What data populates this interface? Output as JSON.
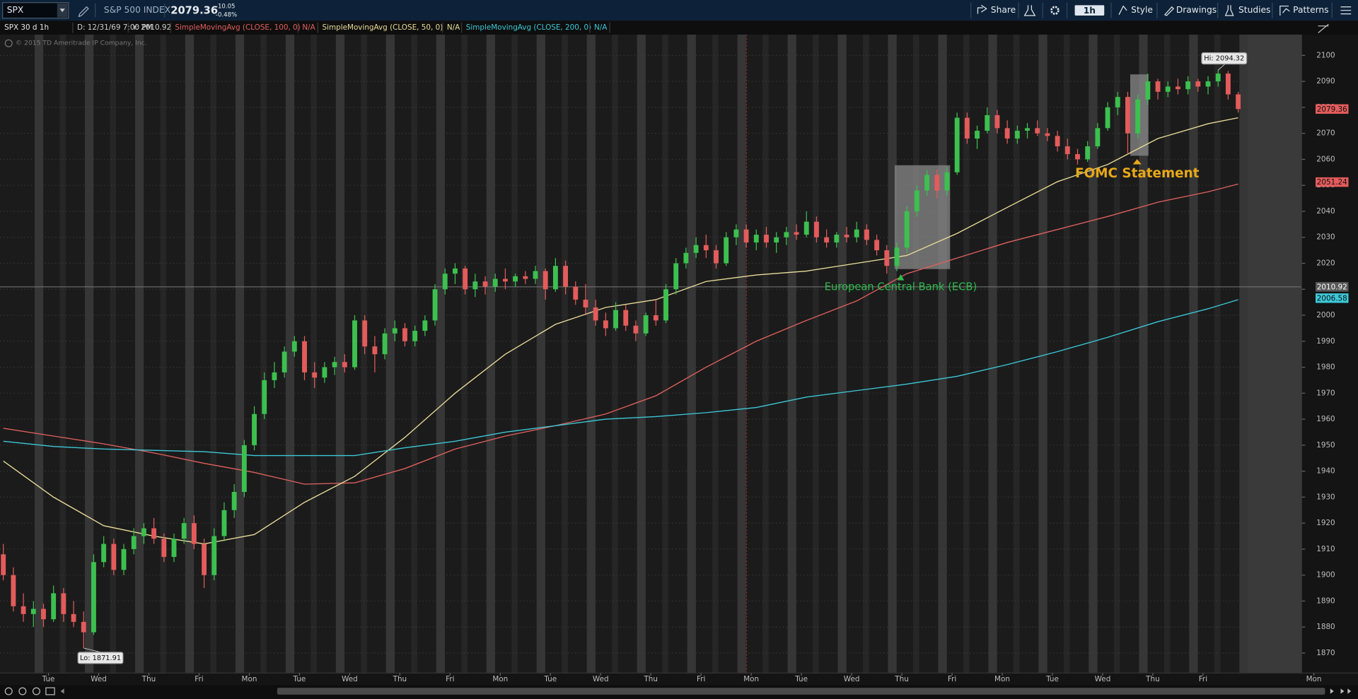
{
  "toolbar": {
    "symbol": "SPX",
    "description": "S&P 500 INDEX",
    "change": "-10.05",
    "change_pct": "-0.48%",
    "buttons": [
      "Share",
      "1h",
      "Style",
      "Drawings",
      "Studies",
      "Patterns"
    ]
  },
  "status": {
    "chart": "SPX 30 d 1h",
    "date": "D: 12/31/69 7:00 PM",
    "y": "Y: 2010.92"
  },
  "copyright": "© 2015 TD Ameritrade IP Company, Inc.",
  "chart_data": {
    "type": "candlestick",
    "up_color": "#3cc04f",
    "down_color": "#e35b5b",
    "grid": true,
    "ylim": [
      1862.3,
      2108
    ],
    "yticks": [
      1870,
      1880,
      1890,
      1900,
      1910,
      1920,
      1930,
      1940,
      1950,
      1960,
      1970,
      1980,
      1990,
      2000,
      2010,
      2020,
      2030,
      2040,
      2050,
      2060,
      2070,
      2080,
      2090,
      2100
    ],
    "x_labels": [
      "Tue",
      "Wed",
      "Thu",
      "Fri",
      "Mon",
      "Tue",
      "Wed",
      "Thu",
      "Fri",
      "Mon",
      "Tue",
      "Wed",
      "Thu",
      "Fri",
      "Mon",
      "Tue",
      "Wed",
      "Thu",
      "Fri",
      "Mon",
      "Tue",
      "Wed",
      "Thu",
      "Fri",
      "Mon"
    ],
    "candles": [
      [
        1908,
        1912,
        1898,
        1900
      ],
      [
        1900,
        1903,
        1886,
        1888
      ],
      [
        1888,
        1893,
        1882,
        1885
      ],
      [
        1885,
        1890,
        1880,
        1887
      ],
      [
        1887,
        1889,
        1880,
        1883
      ],
      [
        1883,
        1896,
        1882,
        1893
      ],
      [
        1893,
        1895,
        1882,
        1885
      ],
      [
        1885,
        1890,
        1880,
        1882
      ],
      [
        1882,
        1886,
        1871.91,
        1878
      ],
      [
        1878,
        1908,
        1877,
        1905
      ],
      [
        1905,
        1915,
        1903,
        1912
      ],
      [
        1912,
        1914,
        1900,
        1902
      ],
      [
        1902,
        1912,
        1900,
        1910
      ],
      [
        1910,
        1918,
        1908,
        1915
      ],
      [
        1915,
        1920,
        1912,
        1918
      ],
      [
        1918,
        1922,
        1912,
        1914
      ],
      [
        1914,
        1916,
        1905,
        1907
      ],
      [
        1907,
        1916,
        1905,
        1914
      ],
      [
        1914,
        1922,
        1912,
        1920
      ],
      [
        1920,
        1923,
        1910,
        1912
      ],
      [
        1912,
        1914,
        1895,
        1900
      ],
      [
        1900,
        1918,
        1898,
        1915
      ],
      [
        1915,
        1928,
        1913,
        1925
      ],
      [
        1925,
        1935,
        1922,
        1932
      ],
      [
        1932,
        1952,
        1930,
        1950
      ],
      [
        1950,
        1965,
        1948,
        1962
      ],
      [
        1962,
        1978,
        1960,
        1975
      ],
      [
        1975,
        1982,
        1972,
        1978
      ],
      [
        1978,
        1988,
        1976,
        1986
      ],
      [
        1986,
        1992,
        1984,
        1990
      ],
      [
        1990,
        1992,
        1975,
        1978
      ],
      [
        1978,
        1982,
        1972,
        1976
      ],
      [
        1976,
        1982,
        1974,
        1980
      ],
      [
        1980,
        1984,
        1977,
        1982
      ],
      [
        1982,
        1985,
        1978,
        1980
      ],
      [
        1980,
        2000,
        1979,
        1998
      ],
      [
        1998,
        2000,
        1985,
        1988
      ],
      [
        1988,
        1992,
        1978,
        1985
      ],
      [
        1985,
        1995,
        1983,
        1993
      ],
      [
        1993,
        1998,
        1990,
        1995
      ],
      [
        1995,
        1997,
        1988,
        1990
      ],
      [
        1990,
        1996,
        1988,
        1994
      ],
      [
        1994,
        2000,
        1992,
        1998
      ],
      [
        1998,
        2012,
        1996,
        2010
      ],
      [
        2010,
        2018,
        2008,
        2016
      ],
      [
        2016,
        2020,
        2012,
        2018
      ],
      [
        2018,
        2019,
        2008,
        2010
      ],
      [
        2010,
        2016,
        2007,
        2013
      ],
      [
        2013,
        2015,
        2008,
        2011
      ],
      [
        2011,
        2016,
        2009,
        2014
      ],
      [
        2014,
        2018,
        2010,
        2013
      ],
      [
        2013,
        2016,
        2011,
        2015
      ],
      [
        2015,
        2017,
        2012,
        2014
      ],
      [
        2014,
        2019,
        2012,
        2017
      ],
      [
        2017,
        2018,
        2006,
        2010
      ],
      [
        2010,
        2022,
        2009,
        2019
      ],
      [
        2019,
        2021,
        2008,
        2011
      ],
      [
        2011,
        2013,
        2004,
        2006
      ],
      [
        2006,
        2012,
        2000,
        2003
      ],
      [
        2003,
        2006,
        1996,
        1998
      ],
      [
        1998,
        2001,
        1992,
        1995
      ],
      [
        1995,
        2005,
        1994,
        2002
      ],
      [
        2002,
        2004,
        1994,
        1996
      ],
      [
        1996,
        1998,
        1990,
        1993
      ],
      [
        1993,
        2001,
        1992,
        2000
      ],
      [
        2000,
        2006,
        1996,
        1998
      ],
      [
        1998,
        2012,
        1997,
        2010
      ],
      [
        2010,
        2022,
        2008,
        2020
      ],
      [
        2020,
        2026,
        2018,
        2024
      ],
      [
        2024,
        2030,
        2022,
        2027
      ],
      [
        2027,
        2031,
        2022,
        2025
      ],
      [
        2025,
        2027,
        2018,
        2020
      ],
      [
        2020,
        2032,
        2019,
        2030
      ],
      [
        2030,
        2035,
        2027,
        2033
      ],
      [
        2033,
        2035,
        2026,
        2028
      ],
      [
        2028,
        2033,
        2025,
        2031
      ],
      [
        2031,
        2034,
        2026,
        2028
      ],
      [
        2028,
        2032,
        2024,
        2030
      ],
      [
        2030,
        2034,
        2027,
        2032
      ],
      [
        2032,
        2035,
        2029,
        2031
      ],
      [
        2031,
        2040,
        2030,
        2036
      ],
      [
        2036,
        2038,
        2028,
        2030
      ],
      [
        2030,
        2033,
        2026,
        2028
      ],
      [
        2028,
        2032,
        2026,
        2031
      ],
      [
        2031,
        2034,
        2028,
        2030
      ],
      [
        2030,
        2036,
        2028,
        2033
      ],
      [
        2033,
        2035,
        2027,
        2029
      ],
      [
        2029,
        2031,
        2023,
        2025
      ],
      [
        2025,
        2027,
        2016,
        2019
      ],
      [
        2019,
        2028,
        2017,
        2026
      ],
      [
        2026,
        2042,
        2024,
        2040
      ],
      [
        2040,
        2050,
        2038,
        2048
      ],
      [
        2048,
        2056,
        2046,
        2054
      ],
      [
        2054,
        2056,
        2045,
        2048
      ],
      [
        2048,
        2057,
        2046,
        2055
      ],
      [
        2055,
        2078,
        2054,
        2076
      ],
      [
        2076,
        2078,
        2066,
        2068
      ],
      [
        2068,
        2073,
        2064,
        2071
      ],
      [
        2071,
        2080,
        2070,
        2077
      ],
      [
        2077,
        2079,
        2070,
        2072
      ],
      [
        2072,
        2075,
        2066,
        2068
      ],
      [
        2068,
        2073,
        2066,
        2071
      ],
      [
        2071,
        2074,
        2068,
        2072
      ],
      [
        2072,
        2075,
        2069,
        2070
      ],
      [
        2070,
        2072,
        2067,
        2069
      ],
      [
        2069,
        2071,
        2063,
        2065
      ],
      [
        2065,
        2068,
        2060,
        2062
      ],
      [
        2062,
        2064,
        2058,
        2060
      ],
      [
        2060,
        2067,
        2059,
        2065
      ],
      [
        2065,
        2074,
        2064,
        2072
      ],
      [
        2072,
        2082,
        2071,
        2080
      ],
      [
        2080,
        2086,
        2077,
        2084
      ],
      [
        2084,
        2086,
        2062,
        2070
      ],
      [
        2070,
        2085,
        2068,
        2083
      ],
      [
        2083,
        2093,
        2081,
        2090
      ],
      [
        2090,
        2091,
        2083,
        2086
      ],
      [
        2086,
        2090,
        2084,
        2088
      ],
      [
        2088,
        2091,
        2085,
        2087
      ],
      [
        2087,
        2092,
        2085,
        2090
      ],
      [
        2090,
        2091,
        2086,
        2088
      ],
      [
        2088,
        2092,
        2085,
        2090
      ],
      [
        2090,
        2094.32,
        2088,
        2093
      ],
      [
        2093,
        2094,
        2083,
        2085
      ],
      [
        2085,
        2086,
        2078,
        2079.36
      ]
    ],
    "series": [
      {
        "name": "SimpleMovingAvg (CLOSE, 100, 0)",
        "value_label": "N/A",
        "color": "#e0605e",
        "x": [
          0,
          5,
          10,
          15,
          20,
          25,
          30,
          35,
          40,
          45,
          50,
          55,
          60,
          65,
          70,
          75,
          80,
          85,
          90,
          95,
          100,
          105,
          110,
          115,
          120,
          123
        ],
        "values": [
          1956.5,
          1953.5,
          1950.5,
          1947,
          1943,
          1939.5,
          1935,
          1935.5,
          1941,
          1948.5,
          1953.5,
          1957.5,
          1962,
          1969,
          1980,
          1990,
          1998,
          2005.5,
          2016,
          2022,
          2028,
          2033,
          2038,
          2043.5,
          2047.5,
          2050.5
        ]
      },
      {
        "name": "SimpleMovingAvg (CLOSE, 50, 0)",
        "value_label": "N/A",
        "color": "#e8dc9a",
        "x": [
          0,
          5,
          10,
          15,
          20,
          25,
          30,
          35,
          40,
          45,
          50,
          55,
          60,
          65,
          70,
          75,
          80,
          85,
          90,
          95,
          100,
          105,
          110,
          115,
          120,
          123
        ],
        "values": [
          1943.9,
          1930,
          1919,
          1915,
          1912,
          1915.6,
          1928,
          1938,
          1953,
          1970,
          1985,
          1996.5,
          2003,
          2006,
          2013,
          2015.5,
          2017,
          2020,
          2023,
          2031.5,
          2041.5,
          2051.4,
          2058,
          2068,
          2073.7,
          2076
        ]
      },
      {
        "name": "SimpleMovingAvg (CLOSE, 200, 0)",
        "value_label": "N/A",
        "color": "#3cc8d8",
        "x": [
          0,
          5,
          10,
          15,
          20,
          25,
          30,
          35,
          40,
          45,
          50,
          55,
          60,
          65,
          70,
          75,
          80,
          85,
          90,
          95,
          100,
          105,
          110,
          115,
          120,
          123
        ],
        "values": [
          1951.5,
          1949.5,
          1948.5,
          1948,
          1947.5,
          1946,
          1946,
          1946,
          1949,
          1951.5,
          1955,
          1957.5,
          1960,
          1961,
          1962.5,
          1964.5,
          1968.5,
          1971,
          1973.5,
          1976.5,
          1981,
          1986,
          1991.5,
          1997.5,
          2002.5,
          2006
        ]
      }
    ],
    "price_tags": [
      {
        "value": 2079.36,
        "color": "#e35b5b"
      },
      {
        "value": 2051.24,
        "color": "#e35b5b"
      },
      {
        "value": 2010.92,
        "color": "#5a5a5a",
        "line": true
      },
      {
        "value": 2006.58,
        "color": "#3cc8d8"
      }
    ],
    "hi_label": "Hi: 2094.32",
    "lo_label": "Lo: 1871.91",
    "annotations": [
      {
        "text": "European Central Bank (ECB)",
        "color": "#2dbb4c"
      },
      {
        "text": "FOMC Statement",
        "color": "#e8a818"
      }
    ]
  }
}
